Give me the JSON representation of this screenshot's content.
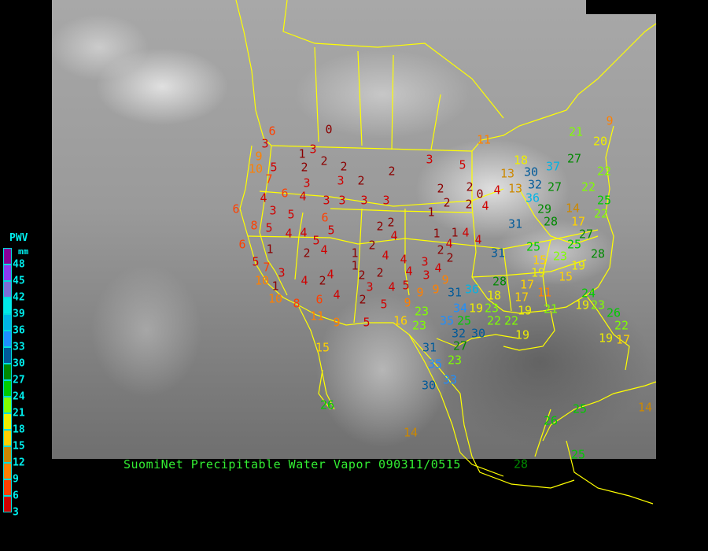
{
  "caption": "SuomiNet Precipitable Water Vapor 090311/0515",
  "legend": {
    "title": "PWV",
    "unit": "mm",
    "labels": [
      "48",
      "45",
      "42",
      "39",
      "36",
      "33",
      "30",
      "27",
      "24",
      "21",
      "18",
      "15",
      "12",
      "9",
      "6",
      "3"
    ],
    "colors": [
      "#880099",
      "#8a3cf0",
      "#7b6fd8",
      "#00e8e8",
      "#00b4e6",
      "#1e8fff",
      "#005a9a",
      "#008a00",
      "#00cc00",
      "#80ff00",
      "#eeee00",
      "#ffd200",
      "#cc8800",
      "#ff8000",
      "#ff4000",
      "#d00000",
      "#8b0000"
    ]
  },
  "border_color": "#ffff00",
  "stations": [
    0,
    6,
    3,
    9,
    3,
    1,
    2,
    2,
    2,
    10,
    5,
    7,
    3,
    3,
    2,
    2,
    3,
    5,
    11,
    6,
    4,
    4,
    3,
    3,
    3,
    3,
    2,
    2,
    2,
    2,
    0,
    4,
    4,
    1,
    6,
    3,
    5,
    6,
    5,
    8,
    5,
    4,
    4,
    5,
    2,
    2,
    2,
    4,
    1,
    1,
    4,
    4,
    6,
    1,
    2,
    4,
    1,
    4,
    4,
    2,
    4,
    2,
    3,
    4,
    4,
    3,
    5,
    3,
    7,
    10,
    1,
    10,
    2,
    4,
    4,
    2,
    1,
    2,
    2,
    3,
    4,
    5,
    9,
    9,
    9,
    4,
    6,
    8,
    5,
    9,
    11,
    9,
    5,
    16,
    23,
    23,
    31,
    36,
    34,
    35,
    32,
    30,
    25,
    23,
    22,
    22,
    19,
    28,
    18,
    19,
    31,
    25,
    15,
    19,
    17,
    17,
    19,
    11,
    21,
    27,
    25,
    23,
    19,
    15,
    28,
    19,
    24,
    23,
    26,
    22,
    19,
    17,
    31,
    36,
    29,
    28,
    27,
    32,
    30,
    13,
    13,
    18,
    21,
    20,
    9,
    27,
    37,
    22,
    22,
    25,
    22,
    14,
    17,
    15,
    31,
    27,
    23,
    35,
    33,
    30,
    26,
    14,
    26,
    25,
    28,
    25,
    14
  ]
}
